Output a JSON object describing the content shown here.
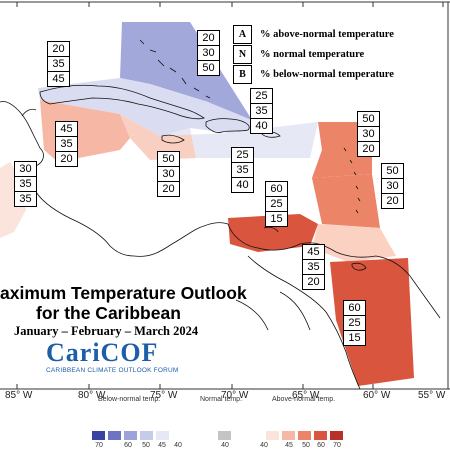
{
  "longitude_labels": [
    "85° W",
    "80° W",
    "75° W",
    "70° W",
    "65° W",
    "60° W",
    "55° W"
  ],
  "legend": [
    {
      "key": "A",
      "text": "% above-normal temperature"
    },
    {
      "key": "N",
      "text": "% normal temperature"
    },
    {
      "key": "B",
      "text": "% below-normal temperature"
    }
  ],
  "title_line1": "aximum Temperature Outlook",
  "title_line2": "for the Caribbean",
  "period": "January – February – March 2024",
  "logo": {
    "name": "CariCOF",
    "subtitle": "CARIBBEAN CLIMATE OUTLOOK FORUM"
  },
  "forecast_boxes": [
    {
      "region": "bahamas",
      "above": "20",
      "normal": "30",
      "below": "50"
    },
    {
      "region": "cuba",
      "above": "20",
      "normal": "35",
      "below": "45"
    },
    {
      "region": "turks-caicos-hispaniola-north",
      "above": "25",
      "normal": "35",
      "below": "40"
    },
    {
      "region": "belize-cayman",
      "above": "45",
      "normal": "35",
      "below": "20"
    },
    {
      "region": "jamaica",
      "above": "50",
      "normal": "30",
      "below": "20"
    },
    {
      "region": "hispaniola-puerto-rico",
      "above": "25",
      "normal": "35",
      "below": "40"
    },
    {
      "region": "leeward-islands",
      "above": "50",
      "normal": "30",
      "below": "20"
    },
    {
      "region": "windward-islands",
      "above": "50",
      "normal": "30",
      "below": "20"
    },
    {
      "region": "central-america-west",
      "above": "30",
      "normal": "35",
      "below": "35"
    },
    {
      "region": "abc-islands-colombia",
      "above": "60",
      "normal": "25",
      "below": "15"
    },
    {
      "region": "trinidad-tobago",
      "above": "45",
      "normal": "35",
      "below": "20"
    },
    {
      "region": "guianas",
      "above": "60",
      "normal": "25",
      "below": "15"
    }
  ],
  "colorbar": {
    "below_label": "Below-normal temp.",
    "normal_label": "Normal temp.",
    "above_label": "Above-normal temp.",
    "below_ticks": [
      "70",
      "60",
      "50",
      "45",
      "40"
    ],
    "normal_ticks": [
      "40"
    ],
    "above_ticks": [
      "40",
      "45",
      "50",
      "60",
      "70"
    ],
    "below_colors": [
      "#3a43a3",
      "#6c74c3",
      "#9da3d8",
      "#c7cbea",
      "#e6e8f6"
    ],
    "normal_color": "#c4c4c4",
    "above_colors": [
      "#fbe4dc",
      "#f6b8a4",
      "#ec8468",
      "#d9553e",
      "#b7312a"
    ]
  }
}
